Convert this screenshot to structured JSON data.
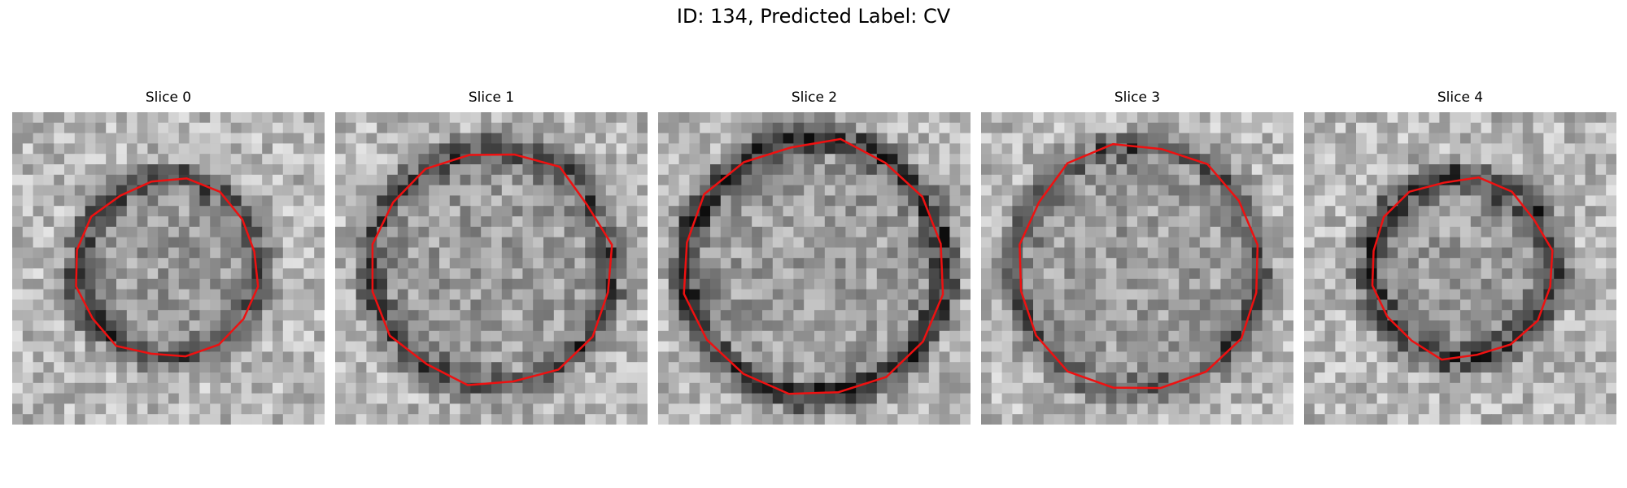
{
  "figure": {
    "title": "ID: 134, Predicted Label: CV",
    "contour_color": "#ee1111"
  },
  "panels": [
    {
      "title": "Slice 0",
      "image": "grayscale patch 30x30 with dim ring",
      "seed": 11,
      "radius": 0.29,
      "ring_dark": 0.55
    },
    {
      "title": "Slice 1",
      "image": "grayscale patch 30x30 with dim ring",
      "seed": 23,
      "radius": 0.38,
      "ring_dark": 0.6
    },
    {
      "title": "Slice 2",
      "image": "grayscale patch 30x30 with dim ring",
      "seed": 37,
      "radius": 0.41,
      "ring_dark": 0.75
    },
    {
      "title": "Slice 3",
      "image": "grayscale patch 30x30 with dim ring",
      "seed": 51,
      "radius": 0.39,
      "ring_dark": 0.5
    },
    {
      "title": "Slice 4",
      "image": "grayscale patch 30x30 with dim ring",
      "seed": 67,
      "radius": 0.29,
      "ring_dark": 0.65
    }
  ]
}
